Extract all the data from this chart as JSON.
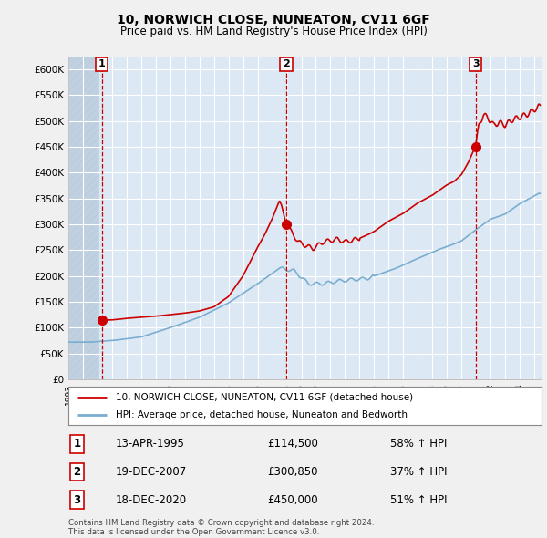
{
  "title": "10, NORWICH CLOSE, NUNEATON, CV11 6GF",
  "subtitle": "Price paid vs. HM Land Registry's House Price Index (HPI)",
  "sales": [
    {
      "date_num": 1995.29,
      "price": 114500,
      "label": "1"
    },
    {
      "date_num": 2007.97,
      "price": 300850,
      "label": "2"
    },
    {
      "date_num": 2020.97,
      "price": 450000,
      "label": "3"
    }
  ],
  "sale_dates_str": [
    "13-APR-1995",
    "19-DEC-2007",
    "18-DEC-2020"
  ],
  "sale_prices_str": [
    "£114,500",
    "£300,850",
    "£450,000"
  ],
  "sale_hpi_str": [
    "58% ↑ HPI",
    "37% ↑ HPI",
    "51% ↑ HPI"
  ],
  "legend_line1": "10, NORWICH CLOSE, NUNEATON, CV11 6GF (detached house)",
  "legend_line2": "HPI: Average price, detached house, Nuneaton and Bedworth",
  "footer": "Contains HM Land Registry data © Crown copyright and database right 2024.\nThis data is licensed under the Open Government Licence v3.0.",
  "ylim": [
    0,
    625000
  ],
  "yticks": [
    0,
    50000,
    100000,
    150000,
    200000,
    250000,
    300000,
    350000,
    400000,
    450000,
    500000,
    550000,
    600000
  ],
  "xlim_left": 1993.0,
  "xlim_right": 2025.5,
  "red_color": "#cc0000",
  "blue_color": "#7aadcf",
  "plot_bg": "#dce9f5",
  "fig_bg": "#f0f0f0",
  "hatch_color": "#c0d0e0"
}
